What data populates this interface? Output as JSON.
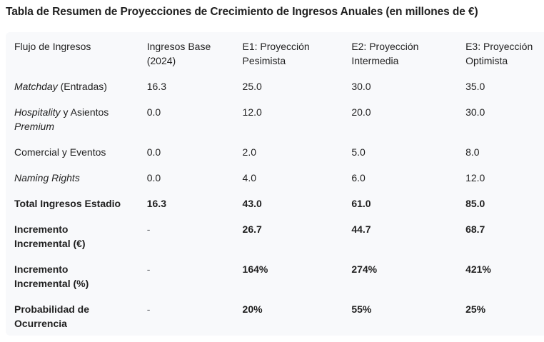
{
  "title": "Tabla de Resumen de Proyecciones de Crecimiento de Ingresos Anuales (en millones de €)",
  "table": {
    "headers": [
      [
        "Flujo de Ingresos",
        ""
      ],
      [
        "Ingresos Base",
        "(2024)"
      ],
      [
        "E1: Proyección",
        "Pesimista"
      ],
      [
        "E2: Proyección",
        "Intermedia"
      ],
      [
        "E3: Proyección",
        "Optimista"
      ]
    ],
    "rows": [
      {
        "label_italic": "Matchday",
        "label_rest": " (Entradas)",
        "label_line2_italic": "",
        "values": [
          "16.3",
          "25.0",
          "30.0",
          "35.0"
        ]
      },
      {
        "label_italic": "Hospitality",
        "label_rest": " y Asientos",
        "label_line2_italic": "Premium",
        "values": [
          "0.0",
          "12.0",
          "20.0",
          "30.0"
        ]
      },
      {
        "label_italic": "",
        "label_rest": "Comercial y Eventos",
        "label_line2_italic": "",
        "values": [
          "0.0",
          "2.0",
          "5.0",
          "8.0"
        ]
      },
      {
        "label_italic": "Naming Rights",
        "label_rest": "",
        "label_line2_italic": "",
        "values": [
          "0.0",
          "4.0",
          "6.0",
          "12.0"
        ]
      },
      {
        "label": "Total Ingresos Estadio",
        "values": [
          "16.3",
          "43.0",
          "61.0",
          "85.0"
        ]
      },
      {
        "label": "Incremento",
        "label_line2": "Incremental (€)",
        "values": [
          "-",
          "26.7",
          "44.7",
          "68.7"
        ]
      },
      {
        "label": "Incremento",
        "label_line2": "Incremental (%)",
        "values": [
          "-",
          "164%",
          "274%",
          "421%"
        ]
      },
      {
        "label": "Probabilidad de",
        "label_line2": "Ocurrencia",
        "values": [
          "-",
          "20%",
          "55%",
          "25%"
        ]
      }
    ]
  }
}
